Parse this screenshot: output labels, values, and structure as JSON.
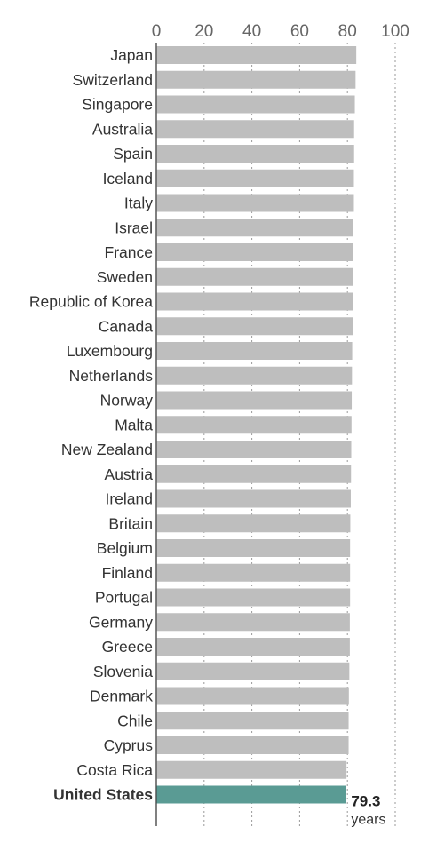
{
  "chart_data": {
    "type": "bar",
    "orientation": "horizontal",
    "title": "",
    "xlabel": "",
    "ylabel": "",
    "xlim": [
      0,
      100
    ],
    "xticks": [
      0,
      20,
      40,
      60,
      80,
      100
    ],
    "grid": true,
    "categories": [
      "Japan",
      "Switzerland",
      "Singapore",
      "Australia",
      "Spain",
      "Iceland",
      "Italy",
      "Israel",
      "France",
      "Sweden",
      "Republic of Korea",
      "Canada",
      "Luxembourg",
      "Netherlands",
      "Norway",
      "Malta",
      "New Zealand",
      "Austria",
      "Ireland",
      "Britain",
      "Belgium",
      "Finland",
      "Portugal",
      "Germany",
      "Greece",
      "Slovenia",
      "Denmark",
      "Chile",
      "Cyprus",
      "Costa Rica",
      "United States"
    ],
    "values": [
      83.7,
      83.4,
      83.1,
      82.8,
      82.8,
      82.7,
      82.7,
      82.5,
      82.4,
      82.4,
      82.3,
      82.2,
      82.0,
      81.9,
      81.8,
      81.7,
      81.6,
      81.5,
      81.4,
      81.2,
      81.1,
      81.1,
      81.1,
      81.0,
      81.0,
      80.8,
      80.6,
      80.5,
      80.5,
      79.6,
      79.3
    ],
    "highlight": {
      "category": "United States",
      "value_label": "79.3",
      "unit": "years",
      "color": "#5a9b94"
    },
    "bar_color": "#bebebe"
  }
}
